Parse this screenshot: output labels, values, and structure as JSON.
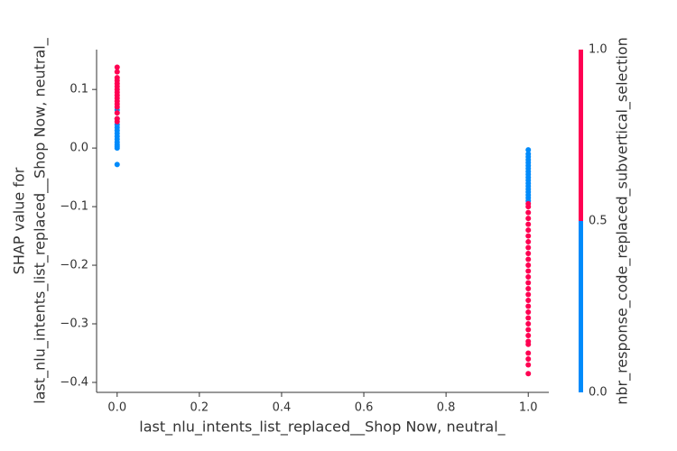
{
  "chart_data": {
    "type": "scatter",
    "xlabel": "last_nlu_intents_list_replaced__Shop Now, neutral_",
    "ylabel": [
      "SHAP value for",
      "last_nlu_intents_list_replaced__Shop Now, neutral_"
    ],
    "xlim": [
      -0.05,
      1.05
    ],
    "ylim": [
      -0.417,
      0.168
    ],
    "xticks": [
      {
        "value": 0,
        "label": "0.0"
      },
      {
        "value": 0.2,
        "label": "0.2"
      },
      {
        "value": 0.4,
        "label": "0.4"
      },
      {
        "value": 0.6,
        "label": "0.6"
      },
      {
        "value": 0.8,
        "label": "0.8"
      },
      {
        "value": 1,
        "label": "1.0"
      }
    ],
    "yticks": [
      {
        "value": 0.1,
        "label": "0.1"
      },
      {
        "value": 0,
        "label": "0.0"
      },
      {
        "value": -0.1,
        "label": "−0.1"
      },
      {
        "value": -0.2,
        "label": "−0.2"
      },
      {
        "value": -0.3,
        "label": "−0.3"
      },
      {
        "value": -0.4,
        "label": "−0.4"
      }
    ],
    "x": [
      0,
      0,
      0,
      0,
      0,
      0,
      0,
      0,
      0,
      0,
      0,
      0,
      0,
      0,
      0,
      0,
      0,
      0,
      0,
      0,
      0,
      0,
      0,
      0,
      0,
      0,
      0,
      0,
      0,
      1,
      1,
      1,
      1,
      1,
      1,
      1,
      1,
      1,
      1,
      1,
      1,
      1,
      1,
      1,
      1,
      1,
      1,
      1,
      1,
      1,
      1,
      1,
      1,
      1,
      1,
      1,
      1,
      1,
      1,
      1,
      1,
      1,
      1,
      1,
      1,
      1,
      1,
      1,
      1,
      1,
      1,
      1,
      1,
      1,
      1,
      1,
      1
    ],
    "y": [
      -0.028,
      0,
      0.003,
      0.006,
      0.01,
      0.015,
      0.02,
      0.025,
      0.03,
      0.035,
      0.04,
      0.05,
      0.065,
      0.045,
      0.05,
      0.06,
      0.07,
      0.075,
      0.08,
      0.085,
      0.09,
      0.095,
      0.1,
      0.105,
      0.11,
      0.115,
      0.12,
      0.13,
      0.138,
      -0.003,
      -0.01,
      -0.015,
      -0.02,
      -0.025,
      -0.03,
      -0.035,
      -0.04,
      -0.045,
      -0.05,
      -0.055,
      -0.06,
      -0.065,
      -0.07,
      -0.075,
      -0.08,
      -0.085,
      -0.09,
      -0.095,
      -0.1,
      -0.11,
      -0.12,
      -0.13,
      -0.14,
      -0.15,
      -0.16,
      -0.17,
      -0.18,
      -0.19,
      -0.2,
      -0.21,
      -0.22,
      -0.23,
      -0.24,
      -0.25,
      -0.26,
      -0.27,
      -0.28,
      -0.29,
      -0.3,
      -0.31,
      -0.32,
      -0.33,
      -0.335,
      -0.35,
      -0.36,
      -0.37,
      -0.385
    ],
    "c": [
      0,
      0,
      0,
      0,
      0,
      0,
      0,
      0,
      0,
      0,
      0,
      0,
      0,
      1,
      1,
      1,
      1,
      1,
      1,
      1,
      1,
      1,
      1,
      1,
      1,
      1,
      1,
      1,
      1,
      0,
      0,
      0,
      0,
      0,
      0,
      0,
      0,
      0,
      0,
      0,
      0,
      0,
      0,
      0,
      0,
      0,
      0,
      1,
      1,
      1,
      1,
      1,
      1,
      1,
      1,
      1,
      1,
      1,
      1,
      1,
      1,
      1,
      1,
      1,
      1,
      1,
      1,
      1,
      1,
      1,
      1,
      1,
      1,
      1,
      1,
      1,
      1
    ],
    "colorbar": {
      "label": "nbr_response_code_replaced_subvertical_selection",
      "lim": [
        0,
        1
      ],
      "colors": [
        "#008bfb",
        "#ff0052"
      ],
      "ticks": [
        {
          "value": 0,
          "label": "0.0"
        },
        {
          "value": 0.5,
          "label": "0.5"
        },
        {
          "value": 1,
          "label": "1.0"
        }
      ]
    }
  }
}
